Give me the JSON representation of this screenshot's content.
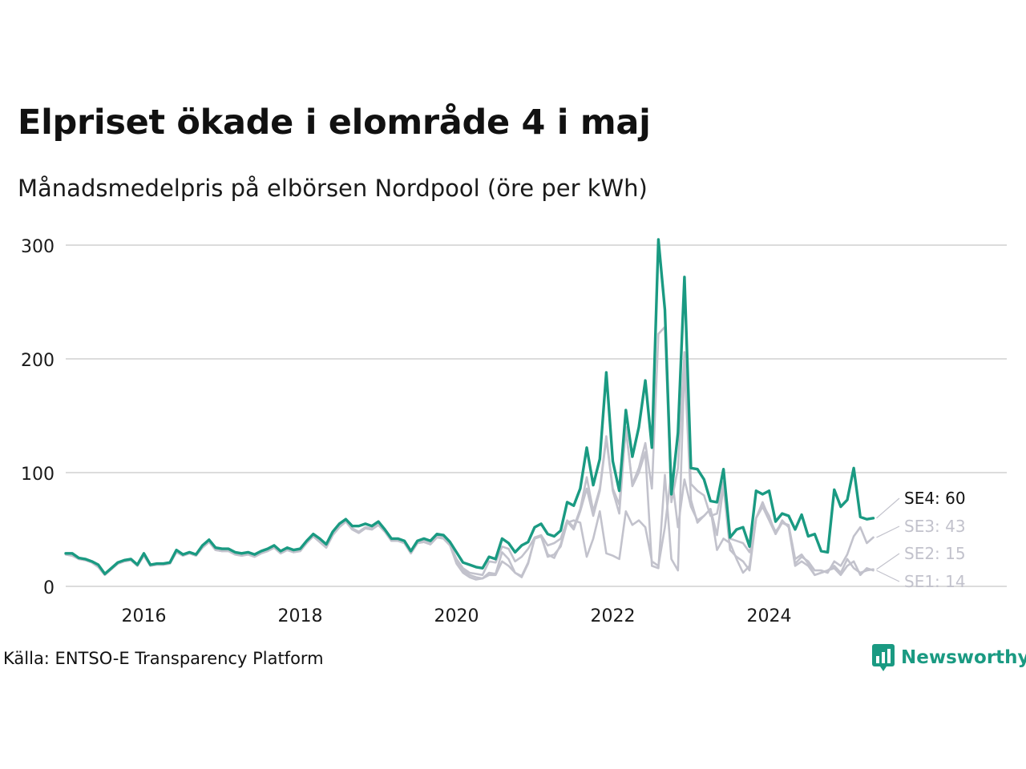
{
  "title": "Elpriset ökade i elområde 4 i maj",
  "subtitle": "Månadsmedelpris på elbörsen Nordpool (öre per kWh)",
  "source": "Källa: ENTSO-E Transparency Platform",
  "brand": {
    "name": "Newsworthy",
    "logo_icon": "bar-chart-speech-bubble-icon",
    "color": "#1a9a82"
  },
  "chart_data": {
    "type": "line",
    "x_start": "2015-01",
    "x_frequency": "monthly",
    "x_ticks": [
      "2016",
      "2018",
      "2020",
      "2022",
      "2024"
    ],
    "y_ticks": [
      0,
      100,
      200,
      300
    ],
    "ylim": [
      0,
      310
    ],
    "grid": "horizontal",
    "highlight_color": "#1a9a82",
    "context_color": "#c2c2cc",
    "series": [
      {
        "name": "SE4",
        "label": "SE4: 60",
        "highlight": true,
        "values": [
          29,
          29,
          25,
          24,
          22,
          19,
          11,
          16,
          21,
          23,
          24,
          19,
          29,
          19,
          20,
          20,
          21,
          32,
          28,
          30,
          28,
          36,
          41,
          34,
          33,
          33,
          30,
          29,
          30,
          28,
          31,
          33,
          36,
          31,
          34,
          32,
          33,
          40,
          46,
          42,
          37,
          48,
          55,
          59,
          53,
          53,
          55,
          53,
          57,
          50,
          42,
          42,
          40,
          31,
          40,
          42,
          40,
          46,
          45,
          39,
          30,
          21,
          19,
          17,
          16,
          26,
          24,
          42,
          38,
          30,
          36,
          39,
          52,
          55,
          46,
          44,
          49,
          74,
          71,
          86,
          122,
          89,
          112,
          188,
          110,
          84,
          155,
          114,
          140,
          181,
          122,
          305,
          243,
          81,
          135,
          272,
          104,
          103,
          94,
          75,
          74,
          103,
          43,
          50,
          52,
          35,
          84,
          81,
          84,
          57,
          64,
          62,
          50,
          63,
          44,
          46,
          31,
          30,
          85,
          70,
          76,
          104,
          61,
          59,
          60
        ]
      },
      {
        "name": "SE3",
        "label": "SE3: 43",
        "highlight": false,
        "values": [
          29,
          28,
          24,
          24,
          22,
          18,
          11,
          15,
          20,
          22,
          24,
          18,
          28,
          19,
          20,
          20,
          21,
          31,
          27,
          29,
          27,
          35,
          40,
          32,
          31,
          32,
          29,
          28,
          29,
          27,
          30,
          32,
          34,
          29,
          32,
          30,
          32,
          39,
          45,
          40,
          35,
          46,
          53,
          58,
          51,
          48,
          52,
          51,
          55,
          49,
          41,
          41,
          39,
          30,
          39,
          40,
          38,
          44,
          43,
          37,
          24,
          16,
          12,
          11,
          10,
          22,
          21,
          35,
          33,
          22,
          26,
          33,
          43,
          45,
          36,
          38,
          42,
          58,
          52,
          68,
          96,
          66,
          86,
          132,
          86,
          72,
          138,
          90,
          104,
          126,
          86,
          222,
          228,
          74,
          104,
          206,
          90,
          84,
          80,
          62,
          64,
          92,
          42,
          40,
          38,
          30,
          60,
          72,
          62,
          46,
          56,
          53,
          20,
          26,
          22,
          14,
          14,
          12,
          22,
          18,
          28,
          44,
          52,
          38,
          43
        ]
      },
      {
        "name": "SE2",
        "label": "SE2: 15",
        "highlight": false,
        "values": [
          28,
          27,
          24,
          23,
          21,
          17,
          10,
          15,
          20,
          22,
          23,
          18,
          27,
          18,
          19,
          19,
          20,
          30,
          27,
          29,
          27,
          34,
          39,
          32,
          31,
          31,
          28,
          27,
          28,
          26,
          29,
          31,
          34,
          29,
          32,
          30,
          31,
          38,
          44,
          39,
          34,
          45,
          52,
          57,
          50,
          47,
          51,
          50,
          54,
          48,
          40,
          40,
          38,
          29,
          38,
          39,
          37,
          43,
          42,
          36,
          22,
          14,
          10,
          8,
          7,
          12,
          11,
          30,
          24,
          12,
          9,
          21,
          42,
          44,
          28,
          25,
          37,
          57,
          50,
          66,
          86,
          62,
          84,
          130,
          84,
          64,
          140,
          88,
          100,
          118,
          18,
          16,
          98,
          24,
          14,
          196,
          76,
          56,
          62,
          68,
          45,
          88,
          32,
          26,
          22,
          14,
          60,
          70,
          58,
          46,
          58,
          52,
          18,
          22,
          18,
          10,
          12,
          14,
          18,
          12,
          24,
          16,
          12,
          14,
          15
        ]
      },
      {
        "name": "SE1",
        "label": "SE1: 14",
        "highlight": false,
        "values": [
          28,
          27,
          24,
          23,
          21,
          17,
          10,
          15,
          20,
          22,
          23,
          18,
          27,
          18,
          19,
          19,
          20,
          30,
          27,
          29,
          27,
          34,
          39,
          32,
          31,
          31,
          28,
          27,
          28,
          26,
          29,
          31,
          34,
          29,
          32,
          30,
          31,
          38,
          44,
          39,
          34,
          45,
          52,
          57,
          50,
          47,
          51,
          50,
          54,
          48,
          40,
          40,
          38,
          29,
          38,
          39,
          37,
          43,
          42,
          36,
          20,
          12,
          8,
          6,
          7,
          10,
          10,
          22,
          18,
          12,
          8,
          20,
          42,
          44,
          26,
          28,
          35,
          56,
          58,
          56,
          26,
          42,
          66,
          29,
          27,
          24,
          66,
          54,
          58,
          52,
          22,
          18,
          52,
          100,
          52,
          94,
          70,
          58,
          62,
          68,
          32,
          42,
          38,
          24,
          12,
          18,
          60,
          74,
          60,
          48,
          56,
          54,
          24,
          28,
          20,
          10,
          12,
          14,
          16,
          10,
          18,
          22,
          10,
          16,
          14
        ]
      }
    ]
  }
}
